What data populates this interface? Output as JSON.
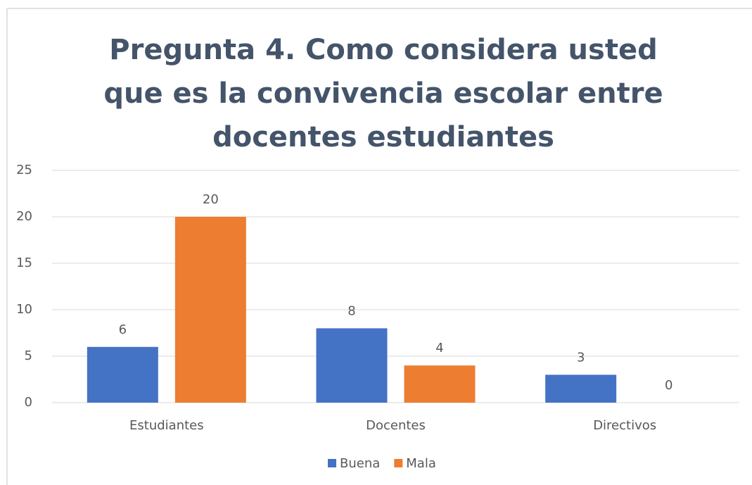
{
  "chart_data": {
    "type": "bar",
    "title": "Pregunta 4. Como considera usted que es la convivencia escolar entre docentes estudiantes",
    "categories": [
      "Estudiantes",
      "Docentes",
      "Directivos"
    ],
    "series": [
      {
        "name": "Buena",
        "color": "#4472c4",
        "values": [
          6,
          8,
          3
        ]
      },
      {
        "name": "Mala",
        "color": "#ed7d31",
        "values": [
          20,
          4,
          0
        ]
      }
    ],
    "ylim": [
      0,
      25
    ],
    "yticks": [
      0,
      5,
      10,
      15,
      20,
      25
    ],
    "grid": true,
    "legend": "bottom"
  }
}
